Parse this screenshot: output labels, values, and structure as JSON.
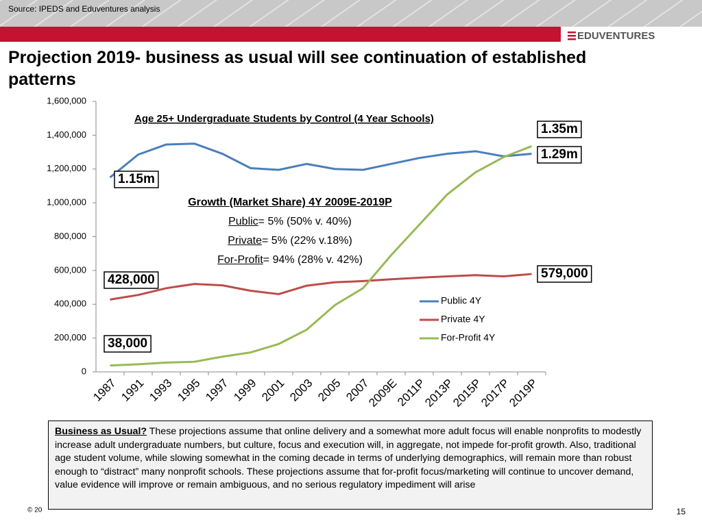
{
  "header": {
    "source": "Source: IPEDS and Eduventures analysis",
    "logo": "EDUVENTURES",
    "title": "Projection 2019- business as usual will see continuation of established patterns"
  },
  "chart_data": {
    "type": "line",
    "title": "Age 25+ Undergraduate Students by Control (4 Year Schools)",
    "categories": [
      "1987",
      "1991",
      "1993",
      "1995",
      "1997",
      "1999",
      "2001",
      "2003",
      "2005",
      "2007",
      "2009E",
      "2011P",
      "2013P",
      "2015P",
      "2017P",
      "2019P"
    ],
    "series": [
      {
        "name": "Public 4Y",
        "color": "#4a7ebb",
        "values": [
          1150000,
          1285000,
          1345000,
          1350000,
          1290000,
          1205000,
          1195000,
          1230000,
          1200000,
          1195000,
          1230000,
          1265000,
          1290000,
          1305000,
          1275000,
          1290000
        ]
      },
      {
        "name": "Private 4Y",
        "color": "#be4b48",
        "values": [
          428000,
          455000,
          495000,
          520000,
          512000,
          480000,
          460000,
          510000,
          530000,
          537000,
          548000,
          557000,
          565000,
          572000,
          565000,
          579000
        ]
      },
      {
        "name": "For-Profit 4Y",
        "color": "#98b954",
        "values": [
          38000,
          45000,
          55000,
          60000,
          90000,
          115000,
          165000,
          250000,
          395000,
          495000,
          690000,
          870000,
          1050000,
          1180000,
          1270000,
          1335000
        ]
      }
    ],
    "ylim": [
      0,
      1600000
    ],
    "yticks": [
      0,
      {
        "value": 200000,
        "label": "200,000"
      },
      {
        "value": 400000,
        "label": "400,000"
      },
      {
        "value": 600000,
        "label": "600,000"
      },
      {
        "value": 800000,
        "label": "800,000"
      },
      {
        "value": 1000000,
        "label": "1,000,000"
      },
      {
        "value": 1200000,
        "label": "1,200,000"
      },
      {
        "value": 1400000,
        "label": "1,400,000"
      },
      {
        "value": 1600000,
        "label": "1,600,000"
      }
    ],
    "annotations": [
      "1.15m",
      "1.35m",
      "1.29m",
      "428,000",
      "579,000",
      "38,000"
    ],
    "growth": {
      "heading": "Growth (Market Share) 4Y 2009E-2019P",
      "rows": [
        {
          "label": "Public",
          "text": "= 5% (50% v. 40%)"
        },
        {
          "label": "Private",
          "text": "= 5% (22% v.18%)"
        },
        {
          "label": "For-Profit",
          "text": "= 94% (28% v. 42%)"
        }
      ]
    },
    "legend": "right"
  },
  "note": {
    "heading": "Business as Usual?",
    "text": " These projections assume that online delivery and a somewhat more adult focus will enable nonprofits to modestly increase adult undergraduate numbers, but culture, focus and execution will, in aggregate, not impede for-profit growth. Also, traditional age student volume, while slowing somewhat in the coming decade in terms of underlying demographics, will remain more than robust enough to “distract” many nonprofit schools. These projections assume that for-profit focus/marketing will continue to uncover demand, value evidence will improve or remain ambiguous, and no  serious regulatory impediment will arise"
  },
  "footer": {
    "copyright": "© 20",
    "page": "15"
  }
}
